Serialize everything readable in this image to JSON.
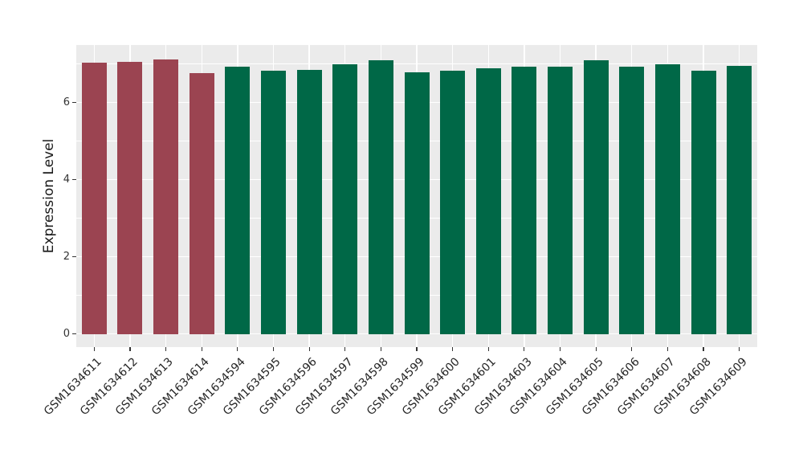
{
  "chart_data": {
    "type": "bar",
    "title": "",
    "ylabel": "Expression Level",
    "yticks": [
      0,
      2,
      4,
      6
    ],
    "yminor": [
      1,
      3,
      5,
      7
    ],
    "ylim": [
      0,
      7.49
    ],
    "grid": true,
    "legend": false,
    "panel_bg": "#EBEBEB",
    "grid_color": "#FFFFFF",
    "group_colors": {
      "highlight": "#9B4451",
      "normal": "#006847"
    },
    "bars": [
      {
        "label": "GSM1634611",
        "value": 7.04,
        "group": "highlight"
      },
      {
        "label": "GSM1634612",
        "value": 7.06,
        "group": "highlight"
      },
      {
        "label": "GSM1634613",
        "value": 7.11,
        "group": "highlight"
      },
      {
        "label": "GSM1634614",
        "value": 6.76,
        "group": "highlight"
      },
      {
        "label": "GSM1634594",
        "value": 6.93,
        "group": "normal"
      },
      {
        "label": "GSM1634595",
        "value": 6.83,
        "group": "normal"
      },
      {
        "label": "GSM1634596",
        "value": 6.84,
        "group": "normal"
      },
      {
        "label": "GSM1634597",
        "value": 6.99,
        "group": "normal"
      },
      {
        "label": "GSM1634598",
        "value": 7.09,
        "group": "normal"
      },
      {
        "label": "GSM1634599",
        "value": 6.78,
        "group": "normal"
      },
      {
        "label": "GSM1634600",
        "value": 6.82,
        "group": "normal"
      },
      {
        "label": "GSM1634601",
        "value": 6.89,
        "group": "normal"
      },
      {
        "label": "GSM1634603",
        "value": 6.93,
        "group": "normal"
      },
      {
        "label": "GSM1634604",
        "value": 6.93,
        "group": "normal"
      },
      {
        "label": "GSM1634605",
        "value": 7.09,
        "group": "normal"
      },
      {
        "label": "GSM1634606",
        "value": 6.93,
        "group": "normal"
      },
      {
        "label": "GSM1634607",
        "value": 6.99,
        "group": "normal"
      },
      {
        "label": "GSM1634608",
        "value": 6.82,
        "group": "normal"
      },
      {
        "label": "GSM1634609",
        "value": 6.94,
        "group": "normal"
      }
    ]
  }
}
